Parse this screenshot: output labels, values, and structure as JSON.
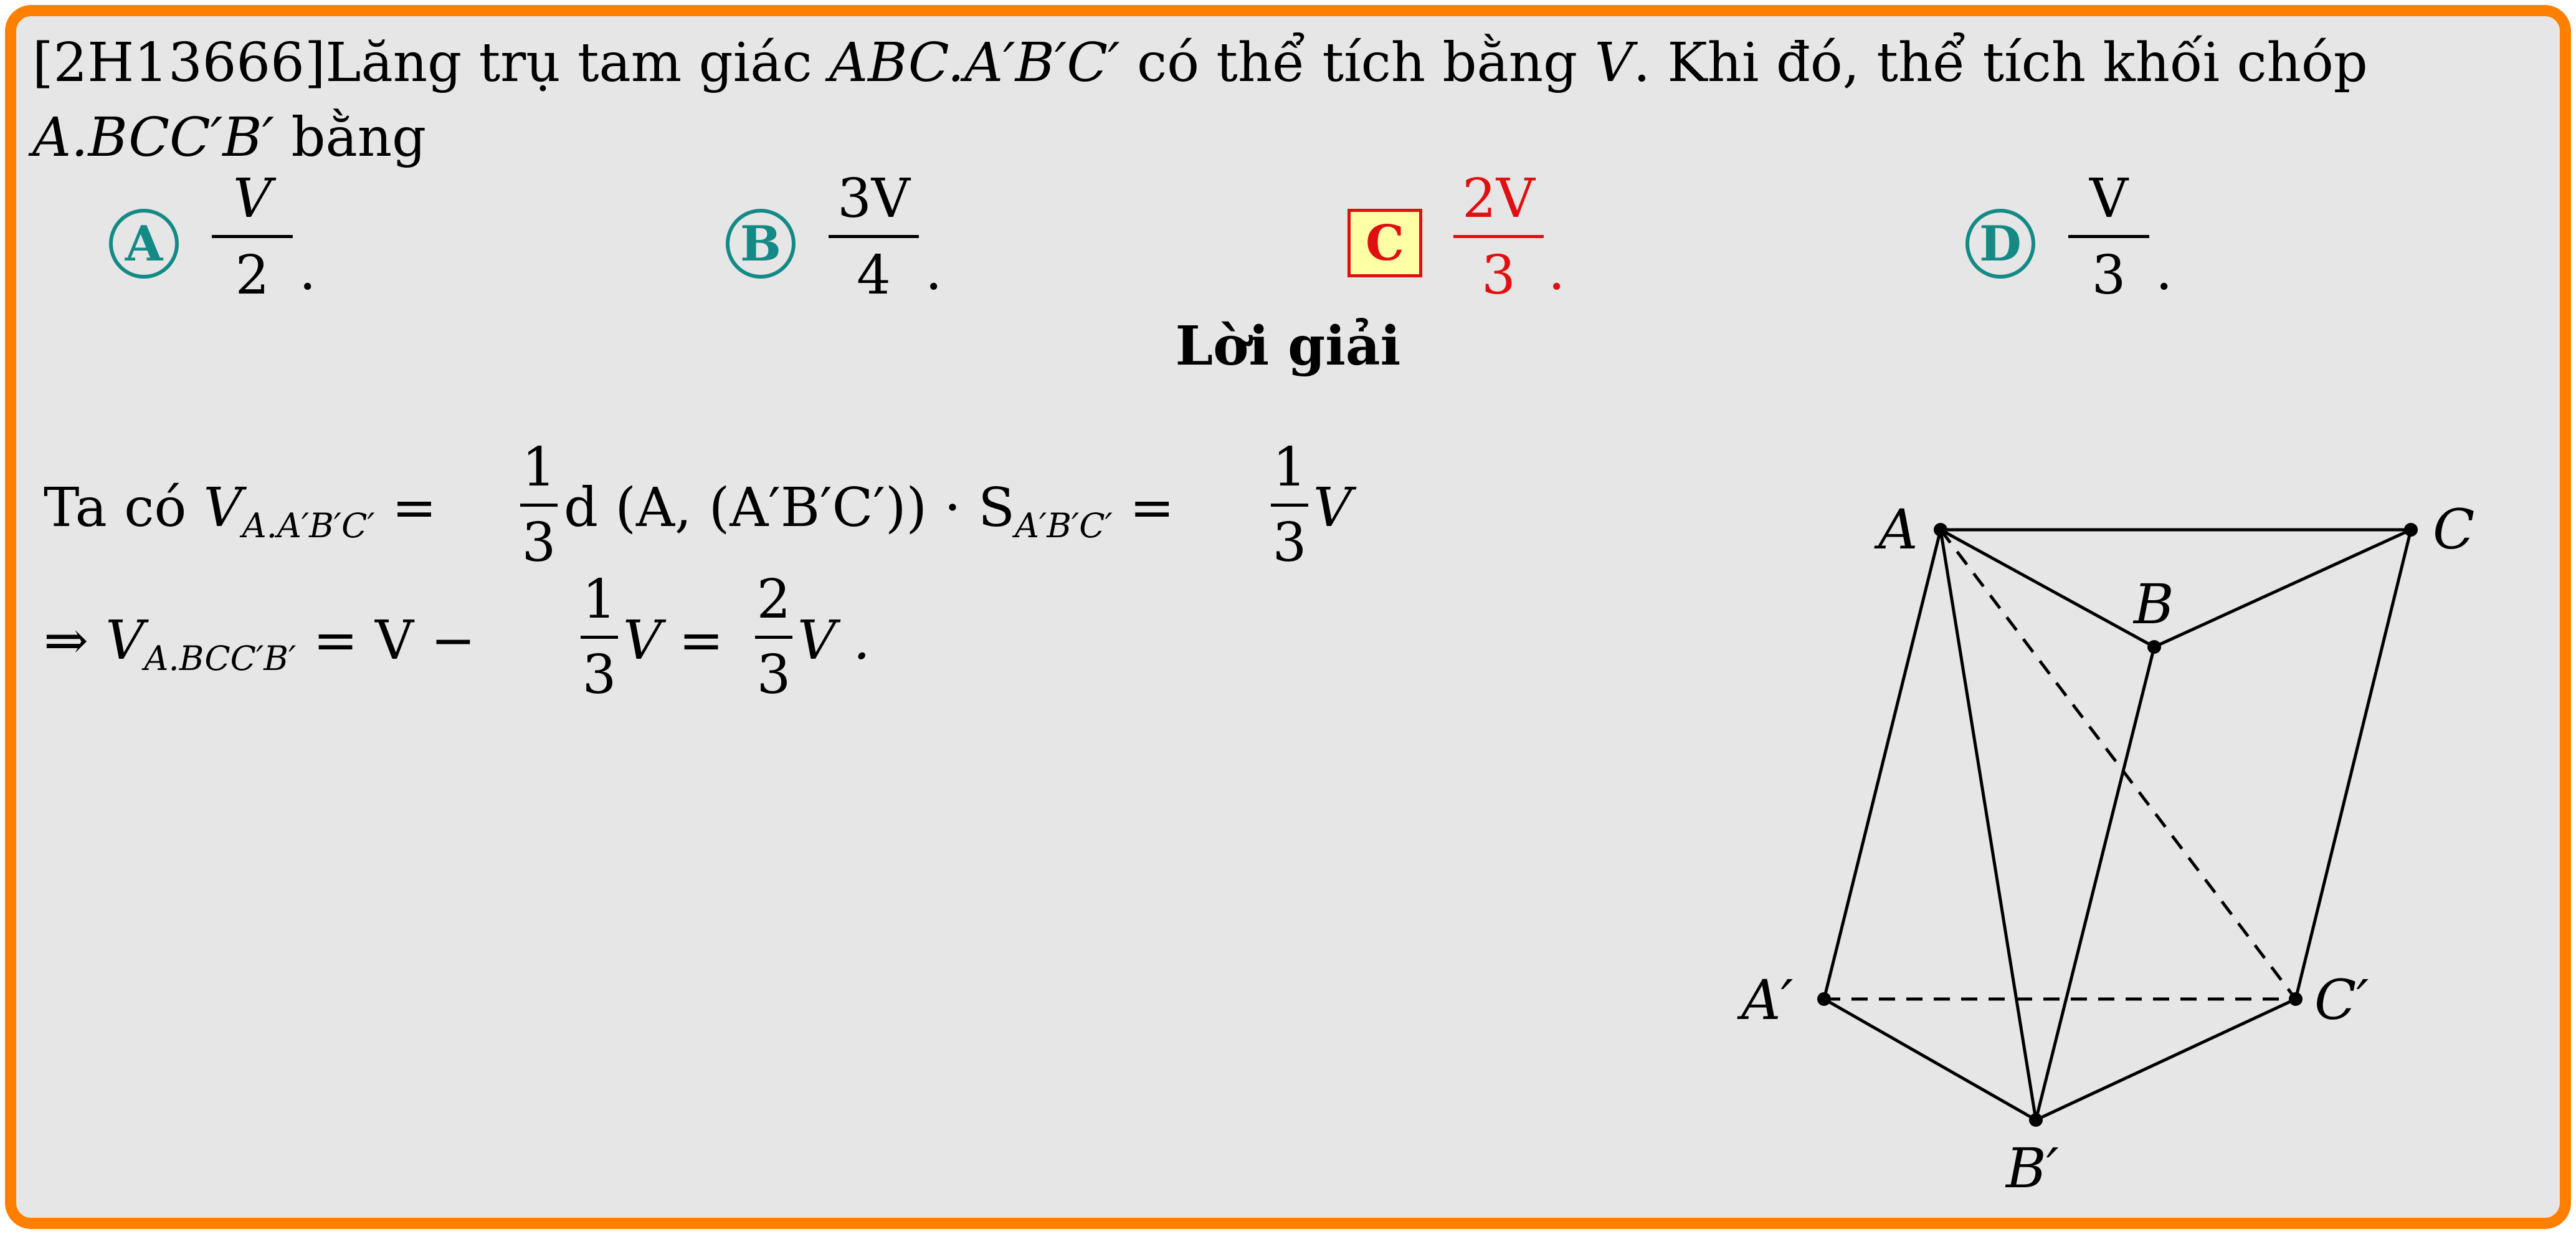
{
  "question": {
    "code": "[2H13666]",
    "text_1": "Lăng trụ tam giác",
    "prism": "ABC.A′B′C′",
    "text_2": "có thể tích bằng",
    "volume": "V",
    "text_3": ". Khi đó, thể tích khối chóp",
    "pyramid": "A.BCC′B′",
    "text_4": "bằng"
  },
  "options": [
    {
      "letter": "A",
      "num": "V",
      "den": "2",
      "selected": false
    },
    {
      "letter": "B",
      "num": "3V",
      "den": "4",
      "selected": false
    },
    {
      "letter": "C",
      "num": "2V",
      "den": "3",
      "selected": true
    },
    {
      "letter": "D",
      "num": "V",
      "den": "3",
      "selected": false
    }
  ],
  "solution_title": "Lời giải",
  "solution": {
    "line1_prefix": "Ta có",
    "line1_lhs": "V",
    "line1_lhs_sub": "A.A′B′C′",
    "frac_num": "1",
    "frac_den": "3",
    "line1_mid": "d (A, (A′B′C′)) · S",
    "line1_mid_sub": "A′B′C′",
    "line1_tail": "V",
    "line2_arrow": "⇒",
    "line2_lhs": "V",
    "line2_lhs_sub": "A.BCC′B′",
    "line2_rhs1": "= V −",
    "line2_rhs2": "V =",
    "frac2_num": "2",
    "frac2_den": "3",
    "line2_end": "V ."
  },
  "figure_labels": {
    "A": "A",
    "B": "B",
    "C": "C",
    "A1": "A′",
    "B1": "B′",
    "C1": "C′"
  },
  "colors": {
    "border": "#ff8000",
    "background": "#e6e6e6",
    "option_badge": "#148a86",
    "correct": "#e01010",
    "correct_fill": "#ffffa6"
  }
}
